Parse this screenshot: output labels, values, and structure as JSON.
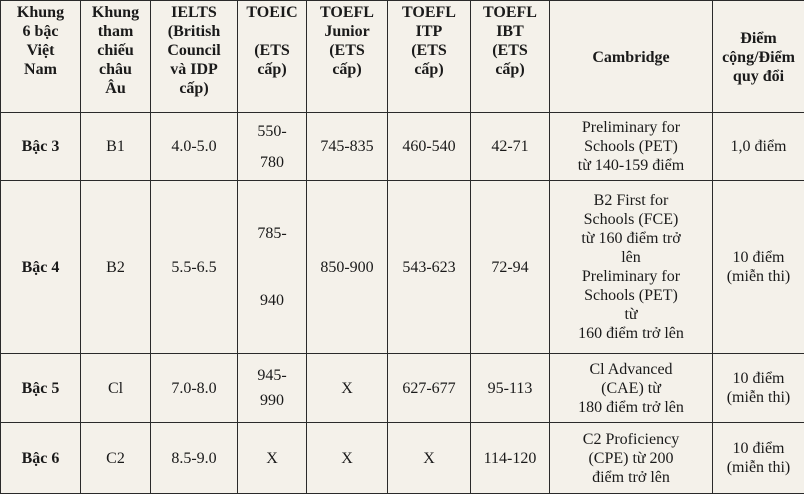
{
  "table": {
    "headers": [
      "Khung\n6 bậc\nViệt\nNam",
      "Khung\ntham\nchiếu\nchâu\nÂu",
      "IELTS\n(British\nCouncil\nvà IDP\ncấp)",
      "TOEIC\n\n(ETS\ncấp)",
      "TOEFL\nJunior\n(ETS\ncấp)",
      "TOEFL\nITP\n(ETS\ncấp)",
      "TOEFL\nIBT\n(ETS\ncấp)",
      "Cambridge",
      "Điểm\ncộng/Điểm\nquy đổi"
    ],
    "rows": [
      {
        "level": "Bậc 3",
        "cefr": "B1",
        "ielts": "4.0-5.0",
        "toeic_top": "550-",
        "toeic_bottom": "780",
        "junior": "745-835",
        "itp": "460-540",
        "ibt": "42-71",
        "cambridge": "Preliminary for\nSchools (PET)\ntừ 140-159 điểm",
        "points": "1,0 điểm"
      },
      {
        "level": "Bậc 4",
        "cefr": "B2",
        "ielts": "5.5-6.5",
        "toeic_top": "785-",
        "toeic_bottom": "940",
        "junior": "850-900",
        "itp": "543-623",
        "ibt": "72-94",
        "cambridge": "B2 First for\nSchools (FCE)\ntừ 160 điểm trở\nlên\nPreliminary for\nSchools (PET)\ntừ\n160 điểm trở lên",
        "points": "10 điểm\n(miễn thi)"
      },
      {
        "level": "Bậc 5",
        "cefr": "Cl",
        "ielts": "7.0-8.0",
        "toeic_top": "945-",
        "toeic_bottom": "990",
        "junior": "X",
        "itp": "627-677",
        "ibt": "95-113",
        "cambridge": "Cl Advanced\n(CAE) từ\n180 điểm trở lên",
        "points": "10 điểm\n(miễn thi)"
      },
      {
        "level": "Bậc 6",
        "cefr": "C2",
        "ielts": "8.5-9.0",
        "toeic_top": "X",
        "toeic_bottom": "",
        "junior": "X",
        "itp": "X",
        "ibt": "114-120",
        "cambridge": "C2 Proficiency\n(CPE) từ 200\nđiểm trở lên",
        "points": "10 điểm\n(miễn thi)"
      }
    ]
  }
}
